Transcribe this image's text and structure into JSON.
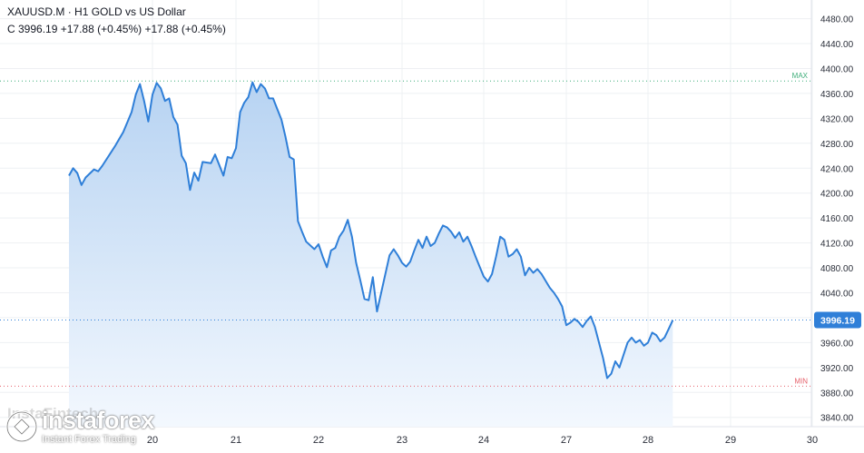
{
  "header": {
    "symbol": "XAUUSD.M",
    "separator": "·",
    "timeframe": "H1",
    "description": "GOLD vs US Dollar",
    "line2": "C 3996.19 +17.88 (+0.45%) +17.88 (+0.45%)"
  },
  "watermark": {
    "brand": "instaforex",
    "tagline": "Instant Forex Trading",
    "ghost_text": "InstaFintech"
  },
  "colors": {
    "line": "#2f7fd8",
    "fill_top": "#b7d3f2",
    "fill_bottom": "#f3f8fe",
    "grid": "#eef0f3",
    "max_line": "#3fae7a",
    "min_line": "#e6616b",
    "current_line": "#2f7fd8",
    "price_label_bg": "#2f7fd8",
    "axis_text": "#2a2e39"
  },
  "chart_data": {
    "type": "area",
    "title": "GOLD vs US Dollar",
    "symbol": "XAUUSD.M",
    "interval": "H1",
    "xlabel": "",
    "ylabel": "",
    "ylim": [
      3825,
      4510
    ],
    "y_ticks": [
      3840,
      3880,
      3920,
      3960,
      4000,
      4040,
      4080,
      4120,
      4160,
      4200,
      4240,
      4280,
      4320,
      4360,
      4400,
      4440,
      4480
    ],
    "y_tick_labels": [
      "3840.00",
      "3880.00",
      "3920.00",
      "3960.00",
      "4000.00",
      "4040.00",
      "4080.00",
      "4120.00",
      "4160.00",
      "4200.00",
      "4240.00",
      "4280.00",
      "4320.00",
      "4360.00",
      "4400.00",
      "4440.00",
      "4480.00"
    ],
    "x_ticks": [
      {
        "label": "20",
        "day": 20
      },
      {
        "label": "21",
        "day": 21
      },
      {
        "label": "22",
        "day": 22
      },
      {
        "label": "23",
        "day": 23
      },
      {
        "label": "24",
        "day": 24
      },
      {
        "label": "27",
        "day": 27
      },
      {
        "label": "28",
        "day": 28
      },
      {
        "label": "29",
        "day": 29
      },
      {
        "label": "30",
        "day": 30
      }
    ],
    "x_unit": "trading day (fractional)",
    "series": [
      {
        "values": [
          [
            19.0,
            4228
          ],
          [
            19.05,
            4240
          ],
          [
            19.1,
            4232
          ],
          [
            19.15,
            4213
          ],
          [
            19.2,
            4225
          ],
          [
            19.3,
            4238
          ],
          [
            19.35,
            4235
          ],
          [
            19.4,
            4244
          ],
          [
            19.55,
            4275
          ],
          [
            19.65,
            4298
          ],
          [
            19.75,
            4330
          ],
          [
            19.8,
            4358
          ],
          [
            19.85,
            4375
          ],
          [
            19.9,
            4348
          ],
          [
            19.95,
            4315
          ],
          [
            20.0,
            4358
          ],
          [
            20.05,
            4377
          ],
          [
            20.1,
            4368
          ],
          [
            20.15,
            4348
          ],
          [
            20.2,
            4352
          ],
          [
            20.25,
            4322
          ],
          [
            20.3,
            4310
          ],
          [
            20.35,
            4260
          ],
          [
            20.4,
            4248
          ],
          [
            20.45,
            4205
          ],
          [
            20.5,
            4233
          ],
          [
            20.55,
            4220
          ],
          [
            20.6,
            4250
          ],
          [
            20.7,
            4248
          ],
          [
            20.75,
            4262
          ],
          [
            20.8,
            4245
          ],
          [
            20.85,
            4228
          ],
          [
            20.9,
            4258
          ],
          [
            20.95,
            4256
          ],
          [
            21.0,
            4272
          ],
          [
            21.05,
            4330
          ],
          [
            21.1,
            4345
          ],
          [
            21.15,
            4354
          ],
          [
            21.2,
            4378
          ],
          [
            21.25,
            4362
          ],
          [
            21.3,
            4375
          ],
          [
            21.35,
            4368
          ],
          [
            21.4,
            4352
          ],
          [
            21.45,
            4352
          ],
          [
            21.5,
            4335
          ],
          [
            21.55,
            4318
          ],
          [
            21.6,
            4290
          ],
          [
            21.65,
            4258
          ],
          [
            21.7,
            4254
          ],
          [
            21.75,
            4155
          ],
          [
            21.8,
            4138
          ],
          [
            21.85,
            4122
          ],
          [
            21.95,
            4110
          ],
          [
            22.0,
            4118
          ],
          [
            22.05,
            4098
          ],
          [
            22.1,
            4081
          ],
          [
            22.15,
            4108
          ],
          [
            22.2,
            4112
          ],
          [
            22.25,
            4130
          ],
          [
            22.3,
            4140
          ],
          [
            22.35,
            4157
          ],
          [
            22.4,
            4130
          ],
          [
            22.45,
            4088
          ],
          [
            22.5,
            4060
          ],
          [
            22.55,
            4030
          ],
          [
            22.6,
            4028
          ],
          [
            22.65,
            4065
          ],
          [
            22.7,
            4010
          ],
          [
            22.75,
            4040
          ],
          [
            22.8,
            4070
          ],
          [
            22.85,
            4100
          ],
          [
            22.9,
            4110
          ],
          [
            22.95,
            4100
          ],
          [
            23.0,
            4088
          ],
          [
            23.05,
            4082
          ],
          [
            23.1,
            4090
          ],
          [
            23.15,
            4108
          ],
          [
            23.2,
            4125
          ],
          [
            23.25,
            4112
          ],
          [
            23.3,
            4130
          ],
          [
            23.35,
            4115
          ],
          [
            23.4,
            4120
          ],
          [
            23.45,
            4135
          ],
          [
            23.5,
            4148
          ],
          [
            23.55,
            4145
          ],
          [
            23.6,
            4138
          ],
          [
            23.65,
            4128
          ],
          [
            23.7,
            4137
          ],
          [
            23.75,
            4122
          ],
          [
            23.8,
            4130
          ],
          [
            23.85,
            4115
          ],
          [
            23.9,
            4098
          ],
          [
            23.95,
            4082
          ],
          [
            24.0,
            4066
          ],
          [
            24.05,
            4058
          ],
          [
            24.1,
            4070
          ],
          [
            24.15,
            4098
          ],
          [
            24.2,
            4130
          ],
          [
            24.25,
            4125
          ],
          [
            24.3,
            4098
          ],
          [
            24.35,
            4102
          ],
          [
            24.4,
            4110
          ],
          [
            24.45,
            4098
          ],
          [
            24.5,
            4068
          ],
          [
            24.55,
            4080
          ],
          [
            24.6,
            4072
          ],
          [
            24.65,
            4078
          ],
          [
            24.7,
            4070
          ],
          [
            24.8,
            4048
          ],
          [
            24.85,
            4040
          ],
          [
            24.9,
            4030
          ],
          [
            24.95,
            4018
          ],
          [
            25.0,
            3988
          ],
          [
            25.05,
            3992
          ],
          [
            25.1,
            3998
          ],
          [
            25.15,
            3993
          ],
          [
            25.2,
            3985
          ],
          [
            25.25,
            3995
          ],
          [
            25.3,
            4002
          ],
          [
            25.35,
            3985
          ],
          [
            25.4,
            3960
          ],
          [
            25.45,
            3935
          ],
          [
            25.5,
            3903
          ],
          [
            25.55,
            3910
          ],
          [
            25.6,
            3930
          ],
          [
            25.65,
            3920
          ],
          [
            25.7,
            3940
          ],
          [
            25.75,
            3960
          ],
          [
            25.8,
            3968
          ],
          [
            25.85,
            3960
          ],
          [
            25.9,
            3964
          ],
          [
            25.95,
            3955
          ],
          [
            26.0,
            3960
          ],
          [
            26.05,
            3976
          ],
          [
            26.1,
            3972
          ],
          [
            26.15,
            3962
          ],
          [
            26.2,
            3968
          ],
          [
            26.25,
            3982
          ],
          [
            26.3,
            3996
          ]
        ]
      }
    ],
    "day_positions": [
      [
        19.0,
        0.0
      ],
      [
        20.0,
        0.0
      ],
      [
        21.0,
        0.0
      ]
    ],
    "annotations": {
      "max": {
        "label": "MAX",
        "value": 4380
      },
      "min": {
        "label": "MIN",
        "value": 3890
      },
      "last_price": {
        "label": "3996.19",
        "value": 3996.19
      }
    },
    "grid": true,
    "legend": "none"
  }
}
